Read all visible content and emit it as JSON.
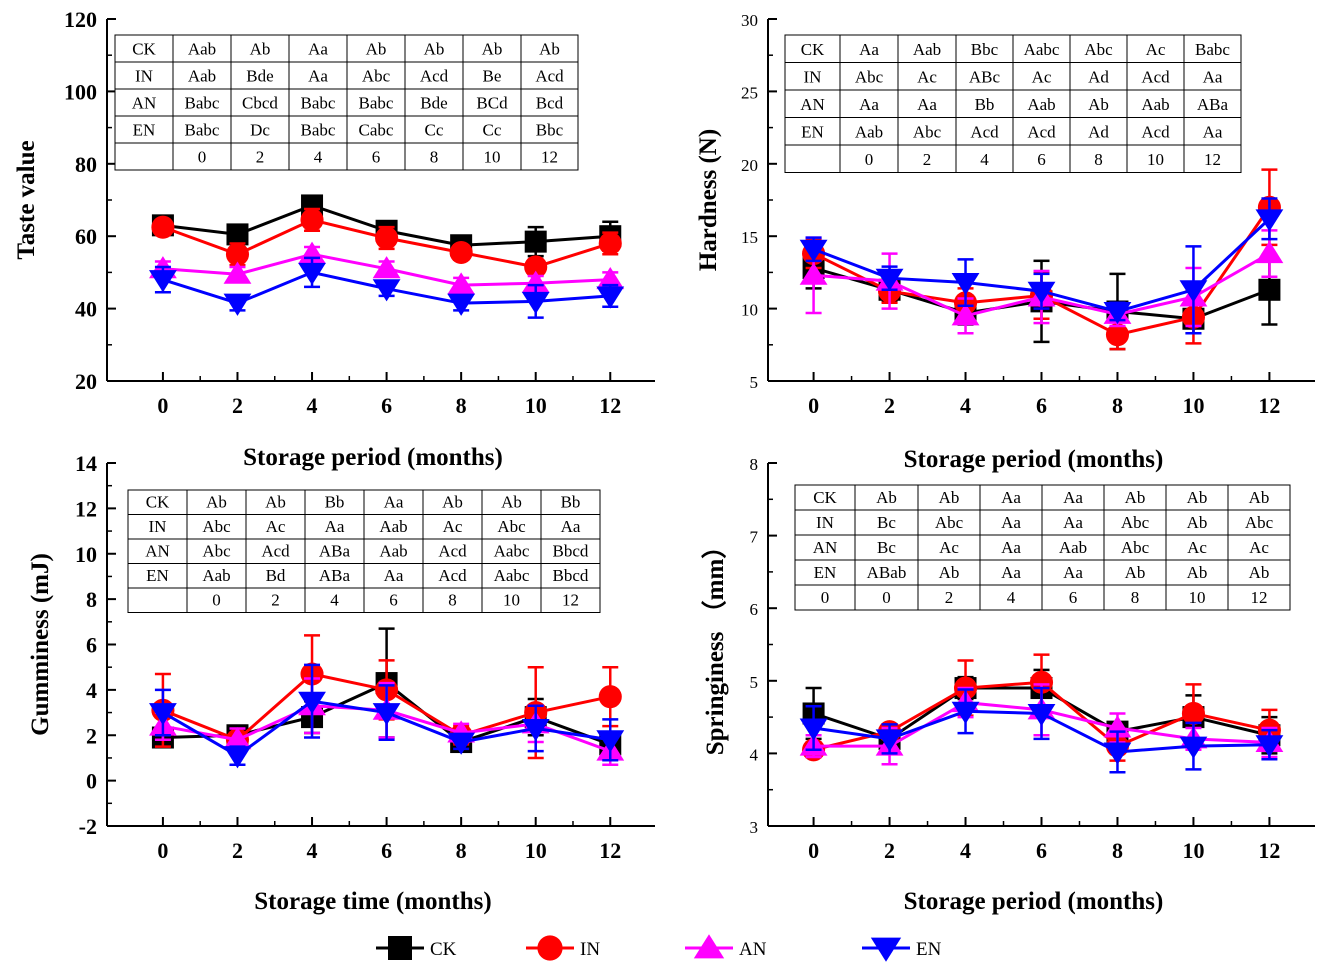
{
  "legend": [
    {
      "name": "CK",
      "color": "#000000",
      "marker": "square"
    },
    {
      "name": "IN",
      "color": "#ff0000",
      "marker": "circle"
    },
    {
      "name": "AN",
      "color": "#ff00ff",
      "marker": "triangle-up"
    },
    {
      "name": "EN",
      "color": "#0000ff",
      "marker": "triangle-down"
    }
  ],
  "chart_data": [
    {
      "type": "line",
      "xlabel": "Storage period (months)",
      "ylabel": "Taste value",
      "x": [
        0,
        2,
        4,
        6,
        8,
        10,
        12
      ],
      "xlim": [
        -1.5,
        13.2
      ],
      "ylim": [
        20,
        120
      ],
      "yticks": [
        20,
        40,
        60,
        80,
        100,
        120
      ],
      "grid": false,
      "series": [
        {
          "name": "CK",
          "values": [
            63,
            60.5,
            68.5,
            61.5,
            57.5,
            58.5,
            60
          ],
          "errors": [
            2.5,
            2,
            2,
            2,
            2,
            4,
            4
          ]
        },
        {
          "name": "IN",
          "values": [
            62.5,
            55,
            64.5,
            59.5,
            55.5,
            51.5,
            58
          ],
          "errors": [
            2,
            3,
            3,
            3,
            2,
            2,
            3
          ]
        },
        {
          "name": "AN",
          "values": [
            51,
            49.5,
            55,
            51,
            46.5,
            47,
            48
          ],
          "errors": [
            2,
            2,
            2,
            2,
            2,
            2,
            2
          ]
        },
        {
          "name": "EN",
          "values": [
            48,
            41.5,
            50,
            45.5,
            41.5,
            42,
            43.5
          ],
          "errors": [
            3.5,
            2,
            4,
            2,
            2,
            4.5,
            3
          ]
        }
      ],
      "table": {
        "rows": [
          [
            "CK",
            "Aab",
            "Ab",
            "Aa",
            "Ab",
            "Ab",
            "Ab",
            "Ab"
          ],
          [
            "IN",
            "Aab",
            "Bde",
            "Aa",
            "Abc",
            "Acd",
            "Be",
            "Acd"
          ],
          [
            "AN",
            "Babc",
            "Cbcd",
            "Babc",
            "Babc",
            "Bde",
            "BCd",
            "Bcd"
          ],
          [
            "EN",
            "Babc",
            "Dc",
            "Babc",
            "Cabc",
            "Cc",
            "Cc",
            "Bbc"
          ],
          [
            "",
            "0",
            "2",
            "4",
            "6",
            "8",
            "10",
            "12"
          ]
        ]
      }
    },
    {
      "type": "line",
      "xlabel": "Storage period (months)",
      "ylabel": "Hardness (N)",
      "x": [
        0,
        2,
        4,
        6,
        8,
        10,
        12
      ],
      "xlim": [
        -1.2,
        13.2
      ],
      "ylim": [
        5,
        30
      ],
      "yticks": [
        5,
        10,
        15,
        20,
        25,
        30
      ],
      "grid": false,
      "series": [
        {
          "name": "CK",
          "values": [
            12.8,
            11.3,
            9.7,
            10.5,
            9.8,
            9.3,
            11.3
          ],
          "errors": [
            1.4,
            0.8,
            0.8,
            2.8,
            2.6,
            1.0,
            2.4
          ]
        },
        {
          "name": "IN",
          "values": [
            13.8,
            11.2,
            10.4,
            10.9,
            8.2,
            9.4,
            17
          ],
          "errors": [
            1.0,
            0.8,
            1.0,
            1.6,
            1.0,
            1.8,
            2.6
          ]
        },
        {
          "name": "AN",
          "values": [
            12.3,
            11.9,
            9.5,
            10.8,
            9.6,
            10.8,
            13.8
          ],
          "errors": [
            2.6,
            1.9,
            1.2,
            1.8,
            0.8,
            2.0,
            1.6
          ]
        },
        {
          "name": "EN",
          "values": [
            14.1,
            12.1,
            11.8,
            11.2,
            9.8,
            11.3,
            16.2
          ],
          "errors": [
            0.8,
            0.8,
            1.6,
            1.2,
            0.6,
            3.0,
            1.4
          ]
        }
      ],
      "table": {
        "rows": [
          [
            "CK",
            "Aa",
            "Aab",
            "Bbc",
            "Aabc",
            "Abc",
            "Ac",
            "Babc"
          ],
          [
            "IN",
            "Abc",
            "Ac",
            "ABc",
            "Ac",
            "Ad",
            "Acd",
            "Aa"
          ],
          [
            "AN",
            "Aa",
            "Aa",
            "Bb",
            "Aab",
            "Ab",
            "Aab",
            "ABa"
          ],
          [
            "EN",
            "Aab",
            "Abc",
            "Acd",
            "Acd",
            "Ad",
            "Acd",
            "Aa"
          ],
          [
            "",
            "0",
            "2",
            "4",
            "6",
            "8",
            "10",
            "12"
          ]
        ]
      }
    },
    {
      "type": "line",
      "xlabel": "Storage time (months)",
      "ylabel": "Gumminess (mJ)",
      "x": [
        0,
        2,
        4,
        6,
        8,
        10,
        12
      ],
      "xlim": [
        -1.5,
        13.2
      ],
      "ylim": [
        -2,
        14
      ],
      "yticks": [
        -2,
        0,
        2,
        4,
        6,
        8,
        10,
        12,
        14
      ],
      "grid": false,
      "series": [
        {
          "name": "CK",
          "values": [
            1.9,
            2.0,
            2.8,
            4.3,
            1.7,
            2.8,
            1.6
          ],
          "errors": [
            0.3,
            0.3,
            0.7,
            2.4,
            0.4,
            0.8,
            0.5
          ]
        },
        {
          "name": "IN",
          "values": [
            3.1,
            1.8,
            4.7,
            4.0,
            2.0,
            3.0,
            3.7
          ],
          "errors": [
            1.6,
            0.3,
            1.7,
            1.3,
            0.4,
            2.0,
            1.3
          ]
        },
        {
          "name": "AN",
          "values": [
            2.4,
            1.8,
            3.3,
            3.1,
            2.1,
            2.5,
            1.3
          ],
          "errors": [
            0.6,
            0.5,
            1.2,
            1.2,
            0.4,
            0.8,
            0.6
          ]
        },
        {
          "name": "EN",
          "values": [
            3.0,
            1.1,
            3.5,
            3.0,
            1.7,
            2.3,
            1.8
          ],
          "errors": [
            1.0,
            0.4,
            1.6,
            1.2,
            0.3,
            1.0,
            0.9
          ]
        }
      ],
      "table": {
        "rows": [
          [
            "CK",
            "Ab",
            "Ab",
            "Bb",
            "Aa",
            "Ab",
            "Ab",
            "Bb"
          ],
          [
            "IN",
            "Abc",
            "Ac",
            "Aa",
            "Aab",
            "Ac",
            "Abc",
            "Aa"
          ],
          [
            "AN",
            "Abc",
            "Acd",
            "ABa",
            "Aab",
            "Acd",
            "Aabc",
            "Bbcd"
          ],
          [
            "EN",
            "Aab",
            "Bd",
            "ABa",
            "Aa",
            "Acd",
            "Aabc",
            "Bbcd"
          ],
          [
            "",
            "0",
            "2",
            "4",
            "6",
            "8",
            "10",
            "12"
          ]
        ]
      }
    },
    {
      "type": "line",
      "xlabel": "Storage period (months)",
      "ylabel": "Springiness （mm）",
      "x": [
        0,
        2,
        4,
        6,
        8,
        10,
        12
      ],
      "xlim": [
        -1.2,
        13.2
      ],
      "ylim": [
        3,
        8
      ],
      "yticks": [
        3,
        4,
        5,
        6,
        7,
        8
      ],
      "grid": false,
      "series": [
        {
          "name": "CK",
          "values": [
            4.55,
            4.2,
            4.9,
            4.9,
            4.3,
            4.5,
            4.25
          ],
          "errors": [
            0.35,
            0.1,
            0.15,
            0.25,
            0.1,
            0.3,
            0.25
          ]
        },
        {
          "name": "IN",
          "values": [
            4.05,
            4.3,
            4.9,
            4.98,
            4.1,
            4.55,
            4.32
          ],
          "errors": [
            0.1,
            0.1,
            0.38,
            0.38,
            0.2,
            0.4,
            0.28
          ]
        },
        {
          "name": "AN",
          "values": [
            4.1,
            4.1,
            4.7,
            4.6,
            4.35,
            4.2,
            4.15
          ],
          "errors": [
            0.15,
            0.25,
            0.2,
            0.35,
            0.2,
            0.15,
            0.2
          ]
        },
        {
          "name": "EN",
          "values": [
            4.35,
            4.2,
            4.58,
            4.55,
            4.02,
            4.1,
            4.12
          ],
          "errors": [
            0.3,
            0.2,
            0.3,
            0.35,
            0.28,
            0.32,
            0.2
          ]
        }
      ],
      "table": {
        "rows": [
          [
            "CK",
            "Ab",
            "Ab",
            "Aa",
            "Aa",
            "Ab",
            "Ab",
            "Ab"
          ],
          [
            "IN",
            "Bc",
            "Abc",
            "Aa",
            "Aa",
            "Abc",
            "Ab",
            "Abc"
          ],
          [
            "AN",
            "Bc",
            "Ac",
            "Aa",
            "Aab",
            "Abc",
            "Ac",
            "Ac"
          ],
          [
            "EN",
            "ABab",
            "Ab",
            "Aa",
            "Aa",
            "Ab",
            "Ab",
            "Ab"
          ],
          [
            "0",
            "0",
            "2",
            "4",
            "6",
            "8",
            "10",
            "12"
          ]
        ]
      }
    }
  ]
}
